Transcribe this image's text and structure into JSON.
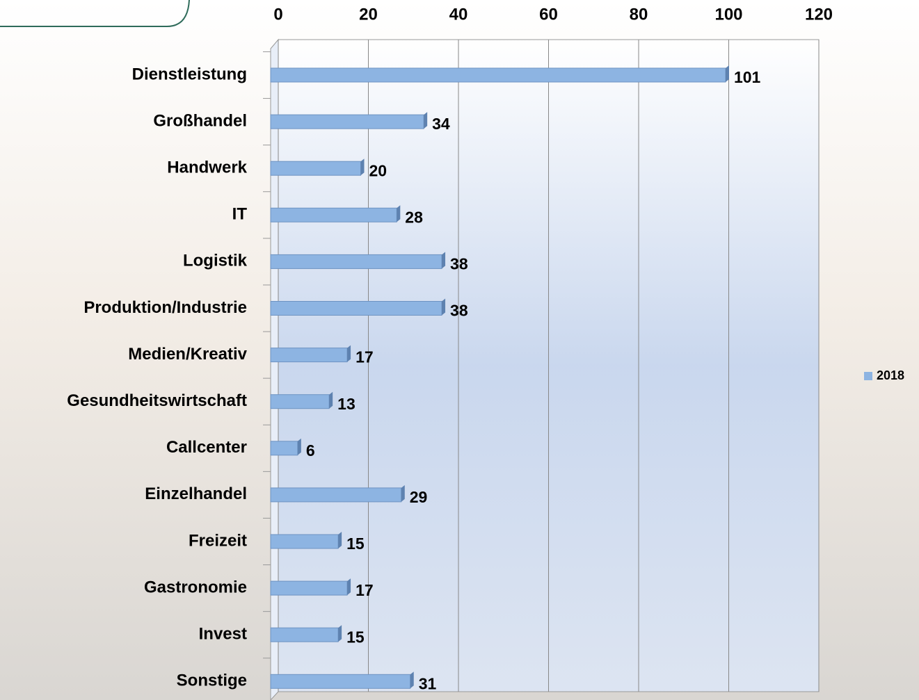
{
  "chart_data": {
    "type": "bar",
    "orientation": "horizontal",
    "categories": [
      "Dienstleistung",
      "Großhandel",
      "Handwerk",
      "IT",
      "Logistik",
      "Produktion/Industrie",
      "Medien/Kreativ",
      "Gesundheitswirtschaft",
      "Callcenter",
      "Einzelhandel",
      "Freizeit",
      "Gastronomie",
      "Invest",
      "Sonstige"
    ],
    "series": [
      {
        "name": "2018",
        "color": "#8db4e2",
        "values": [
          101,
          34,
          20,
          28,
          38,
          38,
          17,
          13,
          6,
          29,
          15,
          17,
          15,
          31
        ]
      }
    ],
    "xlim": [
      0,
      120
    ],
    "xticks": [
      0,
      20,
      40,
      60,
      80,
      100,
      120
    ],
    "grid": true,
    "legend": "right"
  }
}
